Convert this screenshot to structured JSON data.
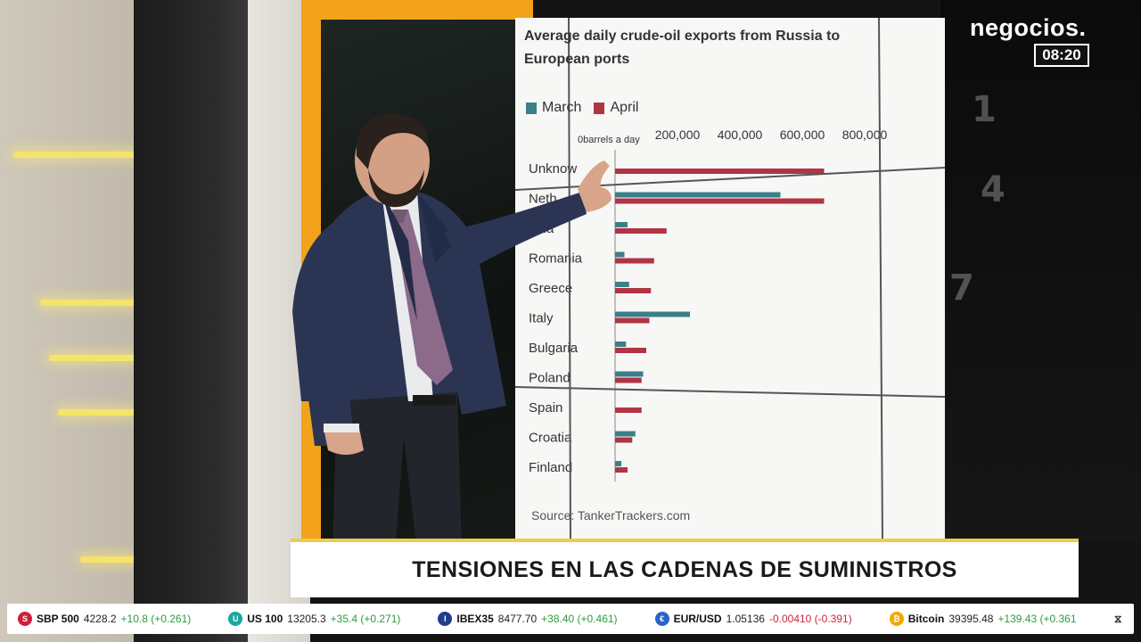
{
  "logo": {
    "name": "negocios.",
    "time": "08:20"
  },
  "banner": {
    "headline": "TENSIONES EN LAS CADENAS DE SUMINISTROS"
  },
  "ticker": [
    {
      "name": "SBP 500",
      "price": "4228.2",
      "change": "+10.8 (+0.261)",
      "direction": "up",
      "icon": "sp500-icon",
      "icon_color": "#d21e3c",
      "icon_glyph": "S"
    },
    {
      "name": "US 100",
      "price": "13205.3",
      "change": "+35.4 (+0.271)",
      "direction": "up",
      "icon": "us100-icon",
      "icon_color": "#1aa7a0",
      "icon_glyph": "U"
    },
    {
      "name": "IBEX35",
      "price": "8477.70",
      "change": "+38.40 (+0.461)",
      "direction": "up",
      "icon": "ibex35-icon",
      "icon_color": "#233a8e",
      "icon_glyph": "I"
    },
    {
      "name": "EUR/USD",
      "price": "1.05136",
      "change": "-0.00410 (-0.391)",
      "direction": "down",
      "icon": "eurusd-icon",
      "icon_color": "#2b63c6",
      "icon_glyph": "€"
    },
    {
      "name": "Bitcoin",
      "price": "39395.48",
      "change": "+139.43 (+0.361",
      "direction": "up",
      "icon": "bitcoin-icon",
      "icon_color": "#f2a900",
      "icon_glyph": "₿"
    }
  ],
  "chart_data": {
    "type": "bar",
    "orientation": "horizontal",
    "title": "Average daily crude-oil exports from Russia to European ports",
    "unit_label": "0barrels a day",
    "x_ticks": [
      "200,000",
      "400,000",
      "600,000",
      "800,000"
    ],
    "x_tick_values": [
      200000,
      400000,
      600000,
      800000
    ],
    "xlim": [
      0,
      800000
    ],
    "categories": [
      "Unknown",
      "Netherlands",
      "Lithuania",
      "Romania",
      "Greece",
      "Italy",
      "Bulgaria",
      "Poland",
      "Spain",
      "Croatia",
      "Finland"
    ],
    "category_labels": [
      "Unknow",
      "Neth",
      "ania",
      "Romania",
      "Greece",
      "Italy",
      "Bulgaria",
      "Poland",
      "Spain",
      "Croatia",
      "Finland"
    ],
    "series": [
      {
        "name": "March",
        "color": "#3b7f89",
        "values": [
          0,
          530000,
          40000,
          30000,
          45000,
          240000,
          35000,
          90000,
          0,
          65000,
          20000
        ]
      },
      {
        "name": "April",
        "color": "#b13445",
        "values": [
          670000,
          670000,
          165000,
          125000,
          115000,
          110000,
          100000,
          85000,
          85000,
          55000,
          40000
        ]
      }
    ],
    "source": "Source: TankerTrackers.com",
    "legend_position": "top-left"
  }
}
